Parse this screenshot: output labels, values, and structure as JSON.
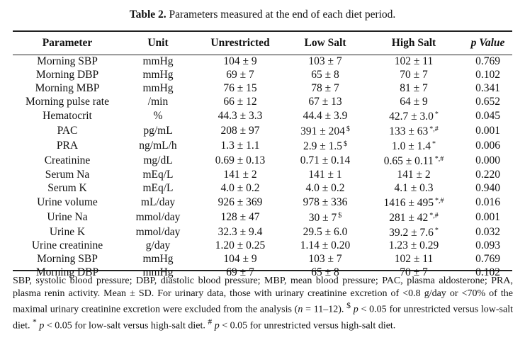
{
  "caption": {
    "label": "Table 2.",
    "text": "Parameters measured at the end of each diet period."
  },
  "table": {
    "headers": [
      "Parameter",
      "Unit",
      "Unrestricted",
      "Low Salt",
      "High Salt",
      "p Value"
    ],
    "rows": [
      {
        "parameter": "Morning SBP",
        "unit": "mmHg",
        "unrestricted": "104 ± 9",
        "unrestricted_mark": "",
        "low_salt": "103 ± 7",
        "low_salt_mark": "",
        "high_salt": "102 ± 11",
        "high_salt_mark": "",
        "p_value": "0.769"
      },
      {
        "parameter": "Morning DBP",
        "unit": "mmHg",
        "unrestricted": "69 ± 7",
        "unrestricted_mark": "",
        "low_salt": "65 ± 8",
        "low_salt_mark": "",
        "high_salt": "70 ± 7",
        "high_salt_mark": "",
        "p_value": "0.102"
      },
      {
        "parameter": "Morning MBP",
        "unit": "mmHg",
        "unrestricted": "76 ± 15",
        "unrestricted_mark": "",
        "low_salt": "78 ± 7",
        "low_salt_mark": "",
        "high_salt": "81 ± 7",
        "high_salt_mark": "",
        "p_value": "0.341"
      },
      {
        "parameter": "Morning pulse rate",
        "unit": "/min",
        "unrestricted": "66 ± 12",
        "unrestricted_mark": "",
        "low_salt": "67 ± 13",
        "low_salt_mark": "",
        "high_salt": "64 ± 9",
        "high_salt_mark": "",
        "p_value": "0.652"
      },
      {
        "parameter": "Hematocrit",
        "unit": "%",
        "unrestricted": "44.3 ± 3.3",
        "unrestricted_mark": "",
        "low_salt": "44.4 ± 3.9",
        "low_salt_mark": "",
        "high_salt": "42.7 ± 3.0",
        "high_salt_mark": "*",
        "p_value": "0.045"
      },
      {
        "parameter": "PAC",
        "unit": "pg/mL",
        "unrestricted": "208 ± 97",
        "unrestricted_mark": "",
        "low_salt": "391 ± 204",
        "low_salt_mark": "$",
        "high_salt": "133 ± 63",
        "high_salt_mark": "*,#",
        "p_value": "0.001"
      },
      {
        "parameter": "PRA",
        "unit": "ng/mL/h",
        "unrestricted": "1.3 ± 1.1",
        "unrestricted_mark": "",
        "low_salt": "2.9 ± 1.5",
        "low_salt_mark": "$",
        "high_salt": "1.0 ± 1.4",
        "high_salt_mark": "*",
        "p_value": "0.006"
      },
      {
        "parameter": "Creatinine",
        "unit": "mg/dL",
        "unrestricted": "0.69 ± 0.13",
        "unrestricted_mark": "",
        "low_salt": "0.71 ± 0.14",
        "low_salt_mark": "",
        "high_salt": "0.65 ± 0.11",
        "high_salt_mark": "*,#",
        "p_value": "0.000"
      },
      {
        "parameter": "Serum Na",
        "unit": "mEq/L",
        "unrestricted": "141 ± 2",
        "unrestricted_mark": "",
        "low_salt": "141 ± 1",
        "low_salt_mark": "",
        "high_salt": "141 ± 2",
        "high_salt_mark": "",
        "p_value": "0.220"
      },
      {
        "parameter": "Serum K",
        "unit": "mEq/L",
        "unrestricted": "4.0 ± 0.2",
        "unrestricted_mark": "",
        "low_salt": "4.0 ± 0.2",
        "low_salt_mark": "",
        "high_salt": "4.1 ± 0.3",
        "high_salt_mark": "",
        "p_value": "0.940"
      },
      {
        "parameter": "Urine volume",
        "unit": "mL/day",
        "unrestricted": "926 ± 369",
        "unrestricted_mark": "",
        "low_salt": "978 ± 336",
        "low_salt_mark": "",
        "high_salt": "1416 ± 495",
        "high_salt_mark": "*,#",
        "p_value": "0.016"
      },
      {
        "parameter": "Urine Na",
        "unit": "mmol/day",
        "unrestricted": "128 ± 47",
        "unrestricted_mark": "",
        "low_salt": "30 ± 7",
        "low_salt_mark": "$",
        "high_salt": "281 ± 42",
        "high_salt_mark": "*,#",
        "p_value": "0.001"
      },
      {
        "parameter": "Urine K",
        "unit": "mmol/day",
        "unrestricted": "32.3 ± 9.4",
        "unrestricted_mark": "",
        "low_salt": "29.5 ± 6.0",
        "low_salt_mark": "",
        "high_salt": "39.2 ± 7.6",
        "high_salt_mark": "*",
        "p_value": "0.032"
      },
      {
        "parameter": "Urine creatinine",
        "unit": "g/day",
        "unrestricted": "1.20 ± 0.25",
        "unrestricted_mark": "",
        "low_salt": "1.14 ± 0.20",
        "low_salt_mark": "",
        "high_salt": "1.23 ± 0.29",
        "high_salt_mark": "",
        "p_value": "0.093"
      },
      {
        "parameter": "Morning SBP",
        "unit": "mmHg",
        "unrestricted": "104 ± 9",
        "unrestricted_mark": "",
        "low_salt": "103 ± 7",
        "low_salt_mark": "",
        "high_salt": "102 ± 11",
        "high_salt_mark": "",
        "p_value": "0.769"
      },
      {
        "parameter": "Morning DBP",
        "unit": "mmHg",
        "unrestricted": "69 ± 7",
        "unrestricted_mark": "",
        "low_salt": "65 ± 8",
        "low_salt_mark": "",
        "high_salt": "70 ± 7",
        "high_salt_mark": "",
        "p_value": "0.102"
      }
    ]
  },
  "footnote": {
    "part1": "SBP, systolic blood pressure; DBP, diastolic blood pressure; MBP, mean blood pressure; PAC, plasma aldosterone; PRA, plasma renin activity. Mean ± SD. For urinary data, those with urinary creatinine excretion of <0.8 g/day or <70% of the maximal urinary creatinine excretion were excluded from the analysis (",
    "n_symbol": "n",
    "n_range": " = 11–12). ",
    "dollar": "$",
    "p1": "p",
    "text1": " < 0.05 for unrestricted versus low-salt diet. ",
    "star": "*",
    "p2": "p",
    "text2": " < 0.05 for low-salt versus high-salt diet. ",
    "hash": "#",
    "p3": "p",
    "text3": " < 0.05 for unrestricted versus high-salt diet."
  }
}
